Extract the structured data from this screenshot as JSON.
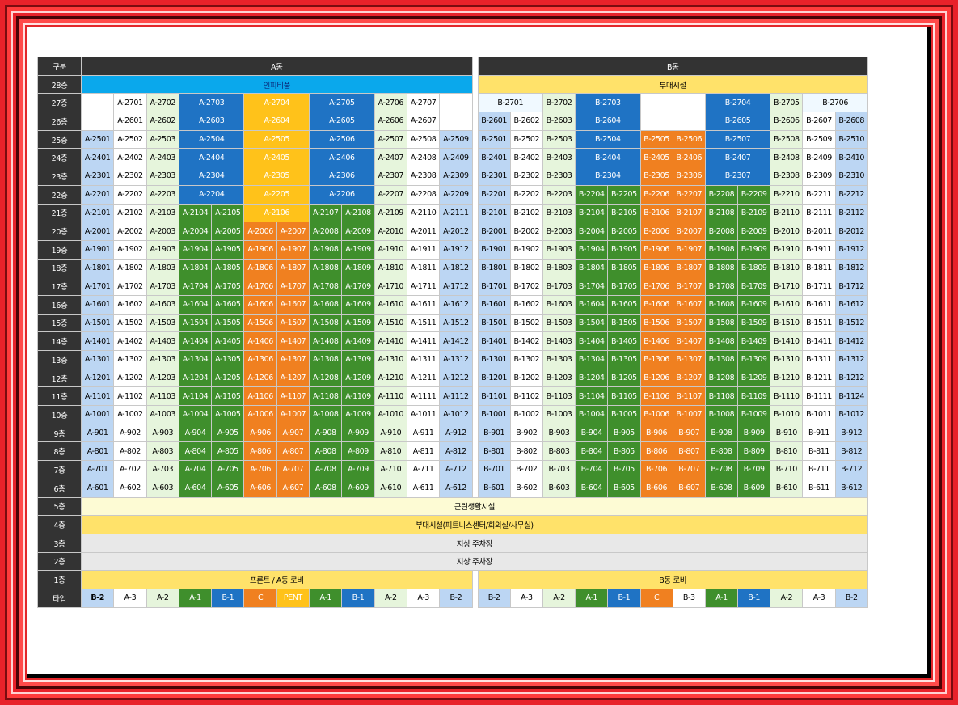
{
  "header": {
    "label": "구분",
    "a": "A동",
    "b": "B동"
  },
  "floors": [
    "28층",
    "27층",
    "26층",
    "25층",
    "24층",
    "23층",
    "22층",
    "21층",
    "20층",
    "19층",
    "18층",
    "17층",
    "16층",
    "15층",
    "14층",
    "13층",
    "12층",
    "11층",
    "10층",
    "9층",
    "8층",
    "7층",
    "6층",
    "5층",
    "4층",
    "3층",
    "2층",
    "1층"
  ],
  "row28": {
    "a": "인피티풀",
    "b": "부대시설"
  },
  "a_units": {
    "27": [
      "",
      "A-2701",
      "A-2702",
      "A-2703",
      "A-2704",
      "A-2705",
      "A-2706",
      "A-2707",
      ""
    ],
    "26": [
      "",
      "A-2601",
      "A-2602",
      "A-2603",
      "A-2604",
      "A-2605",
      "A-2606",
      "A-2607",
      ""
    ],
    "25": [
      "A-2501",
      "A-2502",
      "A-2503",
      "A-2504",
      "A-2505",
      "A-2506",
      "A-2507",
      "A-2508",
      "A-2509"
    ],
    "24": [
      "A-2401",
      "A-2402",
      "A-2403",
      "A-2404",
      "A-2405",
      "A-2406",
      "A-2407",
      "A-2408",
      "A-2409"
    ],
    "23": [
      "A-2301",
      "A-2302",
      "A-2303",
      "A-2304",
      "A-2305",
      "A-2306",
      "A-2307",
      "A-2308",
      "A-2309"
    ],
    "22": [
      "A-2201",
      "A-2202",
      "A-2203",
      "A-2204",
      "A-2205",
      "A-2206",
      "A-2207",
      "A-2208",
      "A-2209"
    ],
    "21": [
      "A-2101",
      "A-2102",
      "A-2103",
      "A-2104",
      "A-2105",
      "A-2106",
      "A-2107",
      "A-2108",
      "A-2109",
      "A-2110",
      "A-2111"
    ]
  },
  "b_units": {
    "27": [
      "B-2701",
      "B-2702",
      "B-2703",
      "",
      "B-2704",
      "B-2705",
      "B-2706"
    ],
    "26": [
      "B-2601",
      "B-2602",
      "B-2603",
      "B-2604",
      "",
      "B-2605",
      "B-2606",
      "B-2607",
      "B-2608"
    ],
    "25": [
      "B-2501",
      "B-2502",
      "B-2503",
      "B-2504",
      "B-2505",
      "B-2506",
      "B-2507",
      "B-2508",
      "B-2509",
      "B-2510"
    ],
    "24": [
      "B-2401",
      "B-2402",
      "B-2403",
      "B-2404",
      "B-2405",
      "B-2406",
      "B-2407",
      "B-2408",
      "B-2409",
      "B-2410"
    ],
    "23": [
      "B-2301",
      "B-2302",
      "B-2303",
      "B-2304",
      "B-2305",
      "B-2306",
      "B-2307",
      "B-2308",
      "B-2309",
      "B-2310"
    ]
  },
  "b_special": {
    "1111": "B-1124"
  },
  "row5": "근린생활시설",
  "row4": "부대시설(피트니스센터/회의실/사무실)",
  "row3": "지상 주차장",
  "row2": "지상 주차장",
  "row1": {
    "a": "프론트 / A동 로비",
    "b": "B동 로비"
  },
  "type_label": "타입",
  "types_a": [
    "B-2",
    "A-3",
    "A-2",
    "A-1",
    "B-1",
    "C",
    "PENT",
    "A-1",
    "B-1",
    "A-2",
    "A-3",
    "B-2"
  ],
  "types_b": [
    "B-2",
    "A-3",
    "A-2",
    "A-1",
    "B-1",
    "C",
    "B-3",
    "A-1",
    "B-1",
    "A-2",
    "A-3",
    "B-2"
  ],
  "colors": {
    "b2": "#bcd6f3",
    "a3": "#ffffff",
    "a2": "#a8dc8c",
    "a1": "#3f8f2c",
    "b1": "#1f73c4",
    "c": "#f08020",
    "pent": "#ffc21a"
  }
}
